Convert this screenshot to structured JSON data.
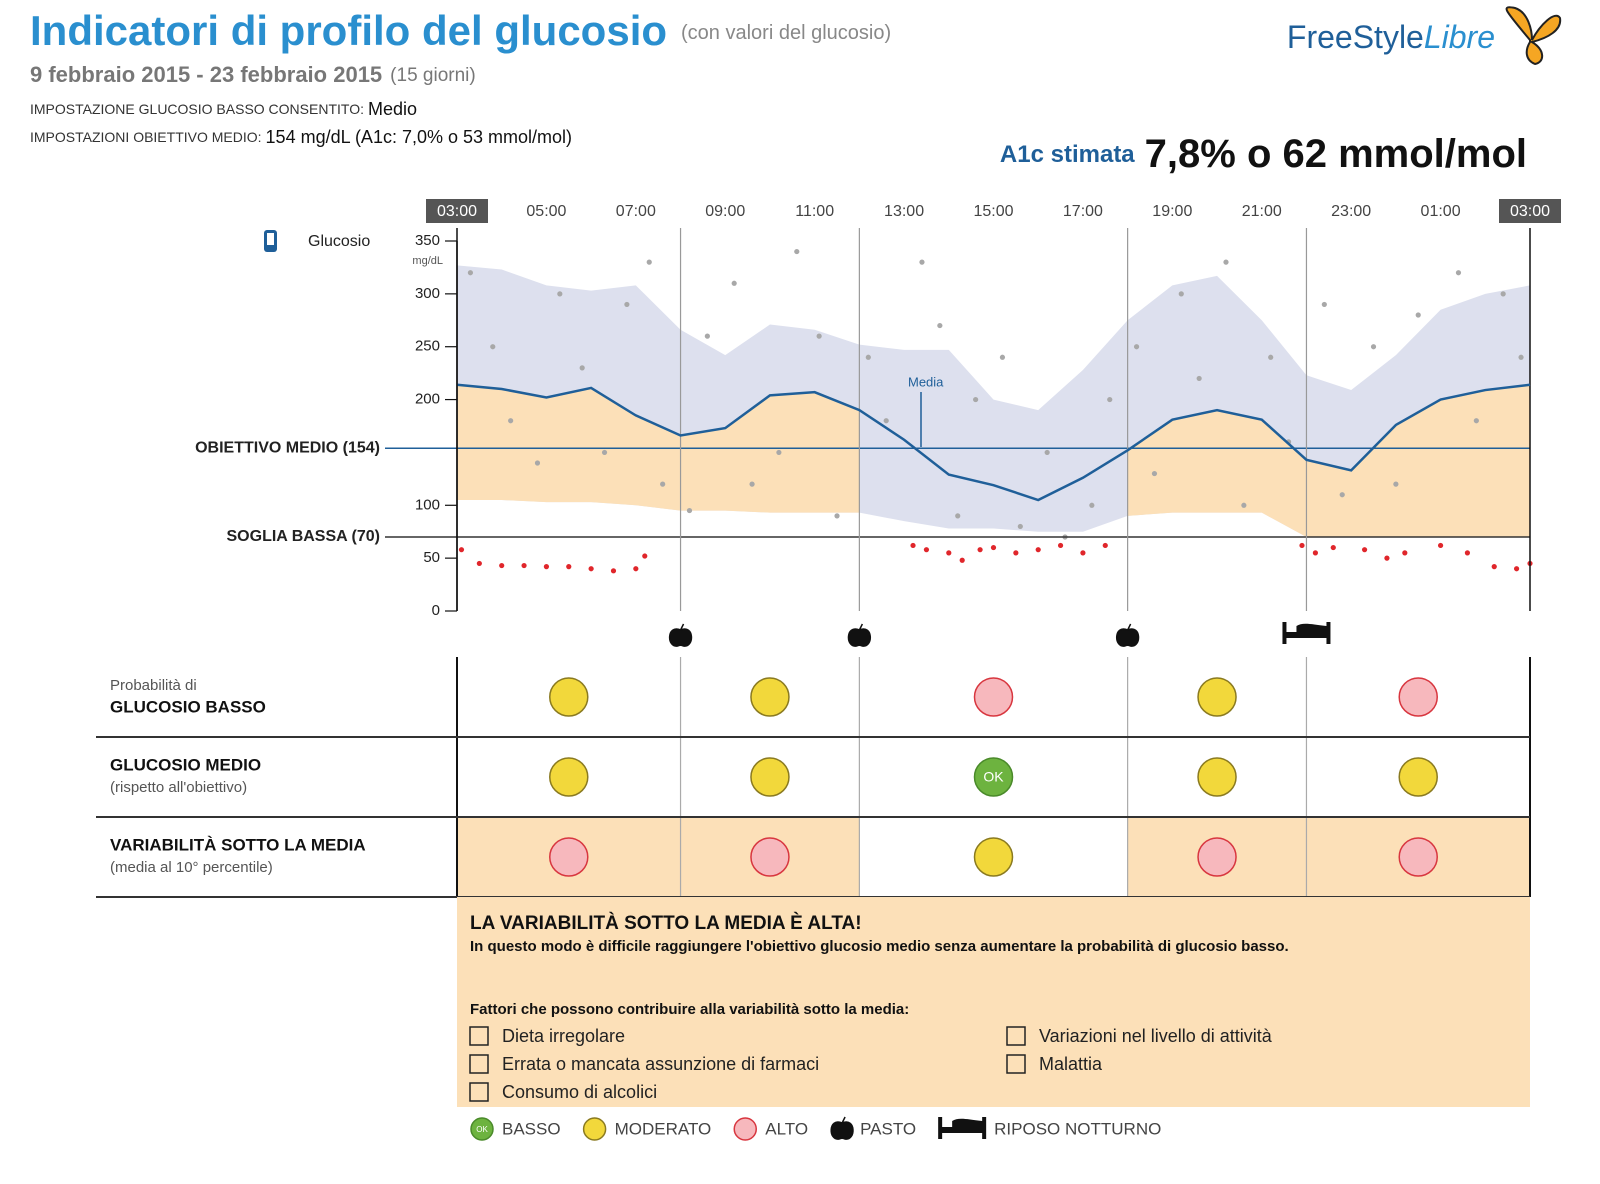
{
  "header": {
    "title": "Indicatori di profilo del glucosio",
    "title_note": "(con valori del glucosio)",
    "dates": "9 febbraio 2015 - 23 febbraio 2015",
    "days": "(15 giorni)",
    "settings": [
      {
        "label": "IMPOSTAZIONE GLUCOSIO BASSO CONSENTITO:",
        "value": "Medio"
      },
      {
        "label": "IMPOSTAZIONI OBIETTIVO MEDIO:",
        "value": "154 mg/dL (A1c: 7,0% o 53 mmol/mol)"
      }
    ],
    "logo": [
      "FreeStyle",
      "Libre"
    ],
    "a1c_label": "A1c stimata",
    "a1c_value": "7,8% o 62 mmol/mol"
  },
  "chart_data": {
    "type": "line",
    "y_label": "Glucosio",
    "y_unit": "mg/dL",
    "median_label": "Media",
    "xlim": [
      0,
      24
    ],
    "xticks": [
      {
        "value": 0,
        "label": "03:00"
      },
      {
        "value": 2,
        "label": "05:00"
      },
      {
        "value": 4,
        "label": "07:00"
      },
      {
        "value": 6,
        "label": "09:00"
      },
      {
        "value": 8,
        "label": "11:00"
      },
      {
        "value": 10,
        "label": "13:00"
      },
      {
        "value": 12,
        "label": "15:00"
      },
      {
        "value": 14,
        "label": "17:00"
      },
      {
        "value": 16,
        "label": "19:00"
      },
      {
        "value": 18,
        "label": "21:00"
      },
      {
        "value": 20,
        "label": "23:00"
      },
      {
        "value": 22,
        "label": "01:00"
      },
      {
        "value": 24,
        "label": "03:00"
      }
    ],
    "ylim": [
      0,
      350
    ],
    "yticks": [
      0,
      50,
      100,
      200,
      250,
      300,
      350
    ],
    "reference_lines": [
      {
        "value": 154,
        "label": "OBIETTIVO MEDIO (154)",
        "color": "#1f5f99"
      },
      {
        "value": 70,
        "label": "SOGLIA BASSA (70)",
        "color": "#333333"
      }
    ],
    "x": [
      0,
      1,
      2,
      3,
      4,
      5,
      6,
      7,
      8,
      9,
      10,
      11,
      12,
      13,
      14,
      15,
      16,
      17,
      18,
      19,
      20,
      21,
      22,
      23,
      24
    ],
    "median": {
      "color": "#1f5f99",
      "values": [
        214,
        210,
        202,
        211,
        185,
        166,
        173,
        204,
        207,
        190,
        162,
        129,
        119,
        105,
        126,
        152,
        181,
        190,
        181,
        143,
        133,
        176,
        200,
        209,
        214
      ]
    },
    "p90": {
      "color": "#dde0ee",
      "values": [
        327,
        323,
        308,
        303,
        308,
        266,
        242,
        271,
        266,
        252,
        247,
        247,
        200,
        190,
        228,
        275,
        308,
        317,
        275,
        223,
        209,
        242,
        285,
        300,
        308
      ]
    },
    "p10": {
      "values": [
        105,
        105,
        103,
        103,
        100,
        95,
        95,
        93,
        93,
        93,
        85,
        78,
        78,
        75,
        75,
        90,
        93,
        93,
        93,
        70,
        70,
        70,
        70,
        70,
        70
      ]
    },
    "highlight_color": "#fce0b8",
    "points": {
      "color": "#a8a8a8",
      "x": [
        0.3,
        0.8,
        1.2,
        1.8,
        2.3,
        2.8,
        3.3,
        3.8,
        4.3,
        4.6,
        5.2,
        5.6,
        6.2,
        6.6,
        7.2,
        7.6,
        8.1,
        8.5,
        9.2,
        9.6,
        10.4,
        10.8,
        11.2,
        11.6,
        12.2,
        12.6,
        13.2,
        13.6,
        14.2,
        14.6,
        15.2,
        15.6,
        16.2,
        16.6,
        17.2,
        17.6,
        18.2,
        18.6,
        19.4,
        19.8,
        20.5,
        21,
        21.5,
        22.4,
        22.8,
        23.4,
        23.8
      ],
      "values": [
        320,
        250,
        180,
        140,
        300,
        230,
        150,
        290,
        330,
        120,
        95,
        260,
        310,
        120,
        150,
        340,
        260,
        90,
        240,
        180,
        330,
        270,
        90,
        200,
        240,
        80,
        150,
        70,
        100,
        200,
        250,
        130,
        300,
        220,
        330,
        100,
        240,
        160,
        290,
        110,
        250,
        120,
        280,
        320,
        180,
        300,
        240
      ]
    },
    "low_points": {
      "color": "#e0262b",
      "x": [
        0.1,
        0.5,
        1,
        1.5,
        2,
        2.5,
        3,
        3.5,
        4,
        4.2,
        10.2,
        10.5,
        11,
        11.3,
        11.7,
        12,
        12.5,
        13,
        13.5,
        14,
        14.5,
        18.9,
        19.2,
        19.6,
        20.3,
        20.8,
        21.2,
        22,
        22.6,
        23.2,
        23.7,
        24
      ],
      "values": [
        58,
        45,
        43,
        43,
        42,
        42,
        40,
        38,
        40,
        52,
        62,
        58,
        55,
        48,
        58,
        60,
        55,
        58,
        62,
        55,
        62,
        62,
        55,
        60,
        58,
        50,
        55,
        62,
        55,
        42,
        40,
        45
      ]
    },
    "period_bounds": [
      0,
      5,
      9,
      15,
      19,
      24
    ],
    "meal_times": [
      5,
      9,
      15
    ],
    "sleep_time": 19
  },
  "table": {
    "rows": [
      {
        "lines": [
          {
            "text": "Probabilità di",
            "bold": false
          },
          {
            "text": "GLUCOSIO BASSO",
            "bold": true
          }
        ],
        "cells": [
          "MODERATO",
          "MODERATO",
          "ALTO",
          "MODERATO",
          "ALTO"
        ]
      },
      {
        "lines": [
          {
            "text": "GLUCOSIO MEDIO",
            "bold": true
          },
          {
            "text": "(rispetto all'obiettivo)",
            "bold": false
          }
        ],
        "cells": [
          "MODERATO",
          "MODERATO",
          "BASSO",
          "MODERATO",
          "MODERATO"
        ]
      },
      {
        "lines": [
          {
            "text": "VARIABILITÀ SOTTO LA MEDIA",
            "bold": true
          },
          {
            "text": "(media al 10° percentile)",
            "bold": false
          }
        ],
        "cells": [
          "ALTO",
          "ALTO",
          "MODERATO",
          "ALTO",
          "ALTO"
        ]
      }
    ]
  },
  "message": {
    "heading": "LA VARIABILITÀ SOTTO LA MEDIA È ALTA!",
    "text": "In questo modo è difficile raggiungere l'obiettivo glucosio medio senza aumentare la probabilità di glucosio basso.",
    "factors_title": "Fattori che possono contribuire alla variabilità sotto la media:",
    "factors": [
      "Dieta irregolare",
      "Errata o mancata assunzione di farmaci",
      "Consumo di alcolici",
      "Variazioni nel livello di attività",
      "Malattia"
    ]
  },
  "legend": [
    {
      "label": "BASSO",
      "text": "OK",
      "fill": "#6db33f",
      "stroke": "#4a8a2a"
    },
    {
      "label": "MODERATO",
      "fill": "#f2d83b",
      "stroke": "#8a7a20"
    },
    {
      "label": "ALTO",
      "fill": "#f7b8bd",
      "stroke": "#d8363f"
    },
    {
      "label": "PASTO",
      "icon": "apple"
    },
    {
      "label": "RIPOSO NOTTURNO",
      "icon": "bed"
    }
  ]
}
